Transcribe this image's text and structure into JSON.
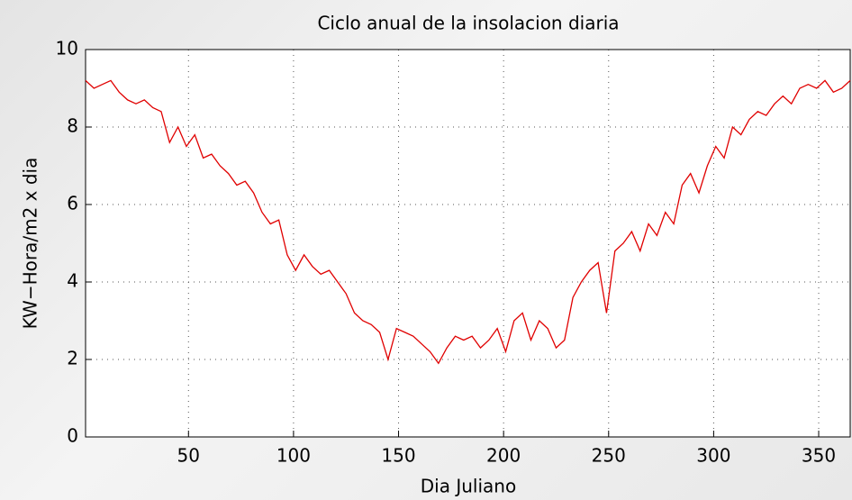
{
  "chart_data": {
    "type": "line",
    "title": "Ciclo anual de la insolacion diaria",
    "x_label": "Dia Juliano",
    "y_label": "KW−Hora/m2 x dia",
    "x": [
      1,
      5,
      9,
      13,
      17,
      21,
      25,
      29,
      33,
      37,
      41,
      45,
      49,
      53,
      57,
      61,
      65,
      69,
      73,
      77,
      81,
      85,
      89,
      93,
      97,
      101,
      105,
      109,
      113,
      117,
      121,
      125,
      129,
      133,
      137,
      141,
      145,
      149,
      153,
      157,
      161,
      165,
      169,
      173,
      177,
      181,
      185,
      189,
      193,
      197,
      201,
      205,
      209,
      213,
      217,
      221,
      225,
      229,
      233,
      237,
      241,
      245,
      249,
      253,
      257,
      261,
      265,
      269,
      273,
      277,
      281,
      285,
      289,
      293,
      297,
      301,
      305,
      309,
      313,
      317,
      321,
      325,
      329,
      333,
      337,
      341,
      345,
      349,
      353,
      357,
      361,
      365
    ],
    "series": [
      {
        "color": "#e00000",
        "values": [
          9.2,
          9.0,
          9.1,
          9.2,
          8.9,
          8.7,
          8.6,
          8.7,
          8.5,
          8.4,
          7.6,
          8.0,
          7.5,
          7.8,
          7.2,
          7.3,
          7.0,
          6.8,
          6.5,
          6.6,
          6.3,
          5.8,
          5.5,
          5.6,
          4.7,
          4.3,
          4.7,
          4.4,
          4.2,
          4.3,
          4.0,
          3.7,
          3.2,
          3.0,
          2.9,
          2.7,
          2.0,
          2.8,
          2.7,
          2.6,
          2.4,
          2.2,
          1.9,
          2.3,
          2.6,
          2.5,
          2.6,
          2.3,
          2.5,
          2.8,
          2.2,
          3.0,
          3.2,
          2.5,
          3.0,
          2.8,
          2.3,
          2.5,
          3.6,
          4.0,
          4.3,
          4.5,
          3.2,
          4.8,
          5.0,
          5.3,
          4.8,
          5.5,
          5.2,
          5.8,
          5.5,
          6.5,
          6.8,
          6.3,
          7.0,
          7.5,
          7.2,
          8.0,
          7.8,
          8.2,
          8.4,
          8.3,
          8.6,
          8.8,
          8.6,
          9.0,
          9.1,
          9.0,
          9.2,
          8.9,
          9.0,
          9.2
        ]
      }
    ],
    "xlim": [
      1,
      365
    ],
    "ylim": [
      0,
      10
    ],
    "xticks": [
      50,
      100,
      150,
      200,
      250,
      300,
      350
    ],
    "yticks": [
      0,
      2,
      4,
      6,
      8,
      10
    ],
    "grid": true
  }
}
